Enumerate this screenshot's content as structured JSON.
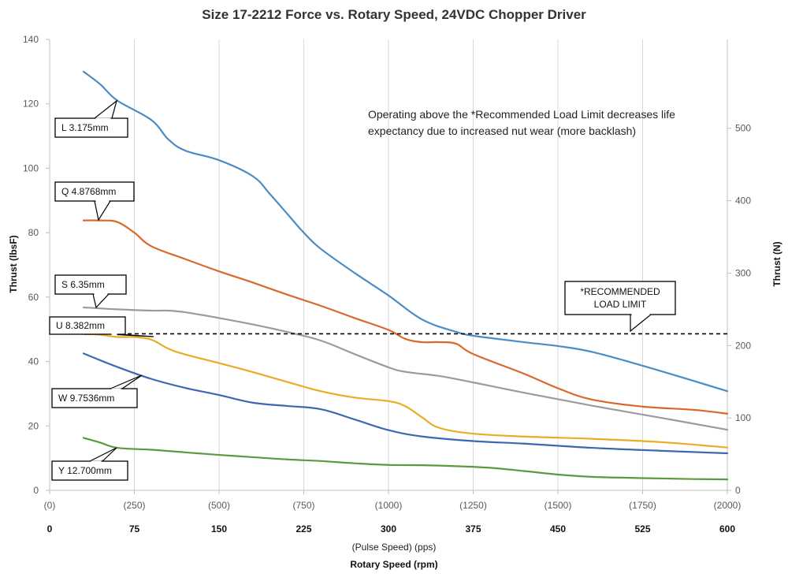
{
  "chart_data": {
    "type": "line",
    "title": "Size 17-2212 Force vs. Rotary Speed, 24VDC Chopper Driver",
    "ylabel": "Thrust (lbsF)",
    "ylabel_right": "Thrust (N)",
    "xlabel": "Rotary Speed (rpm)",
    "xlabel_secondary": "(Pulse Speed) (pps)",
    "x_range": [
      0,
      600
    ],
    "ylim": [
      0,
      140
    ],
    "yticks": [
      0,
      20,
      40,
      60,
      80,
      100,
      120,
      140
    ],
    "ylim_right": [
      0,
      622.75
    ],
    "yticks_right": [
      0,
      100,
      200,
      300,
      400,
      500
    ],
    "xticks_rpm": [
      "0",
      "75",
      "150",
      "225",
      "300",
      "375",
      "450",
      "525",
      "600"
    ],
    "xticks_pps": [
      "(0)",
      "(250)",
      "(500)",
      "(750)",
      "(1000)",
      "(1250)",
      "(1500)",
      "(1750)",
      "(2000)"
    ],
    "grid": "vertical",
    "note": [
      "Operating above the *Recommended Load Limit decreases life",
      "expectancy due to increased nut wear (more backlash)"
    ],
    "reference_line": {
      "y": 48.6,
      "label": [
        "*RECOMMENDED",
        "LOAD LIMIT"
      ],
      "color": "#000000"
    },
    "series": [
      {
        "name": "L 3.175mm",
        "color": "#4a8dc4",
        "x": [
          30,
          45,
          60,
          90,
          105,
          120,
          150,
          180,
          195,
          210,
          225,
          240,
          270,
          300,
          330,
          360,
          375,
          420,
          450,
          480,
          525,
          570,
          600
        ],
        "y": [
          130,
          126,
          121,
          115,
          109,
          105.5,
          102.5,
          97.5,
          92,
          86,
          80,
          75,
          67.5,
          60.5,
          53,
          49.2,
          48,
          46,
          44.8,
          43,
          38.7,
          34,
          30.8
        ]
      },
      {
        "name": "Q 4.8768mm",
        "color": "#d9692a",
        "x": [
          30,
          45,
          60,
          75,
          90,
          120,
          150,
          180,
          210,
          240,
          270,
          300,
          315,
          330,
          345,
          360,
          375,
          420,
          450,
          480,
          525,
          570,
          600
        ],
        "y": [
          83.8,
          83.8,
          83.3,
          80,
          75.8,
          71.8,
          68,
          64.5,
          60.8,
          57.3,
          53.5,
          49.8,
          47,
          46,
          46,
          45.5,
          42.3,
          36.2,
          31.7,
          28.2,
          26,
          25,
          23.8
        ]
      },
      {
        "name": "S 6.35mm",
        "color": "#9b9b9b",
        "x": [
          30,
          60,
          90,
          105,
          120,
          150,
          180,
          210,
          240,
          270,
          300,
          315,
          345,
          375,
          420,
          480,
          540,
          600
        ],
        "y": [
          56.8,
          56.2,
          55.8,
          55.8,
          55.3,
          53.5,
          51.5,
          49.2,
          46.5,
          42.3,
          38.2,
          36.8,
          35.5,
          33.5,
          30.3,
          26.3,
          22.6,
          18.8
        ]
      },
      {
        "name": "U 8.382mm",
        "color": "#e8ad24",
        "x": [
          30,
          45,
          60,
          75,
          90,
          105,
          120,
          150,
          180,
          210,
          240,
          270,
          300,
          315,
          330,
          345,
          375,
          420,
          480,
          540,
          600
        ],
        "y": [
          48.5,
          48.3,
          47.6,
          47.6,
          46.8,
          44,
          42.2,
          39.5,
          36.7,
          33.7,
          30.8,
          28.8,
          27.7,
          26.1,
          22.6,
          19.4,
          17.6,
          16.7,
          16,
          15,
          13.3
        ]
      },
      {
        "name": "W 9.7536mm",
        "color": "#3e67b1",
        "x": [
          30,
          60,
          90,
          120,
          150,
          180,
          210,
          240,
          270,
          300,
          330,
          375,
          420,
          480,
          540,
          600
        ],
        "y": [
          42.5,
          38.3,
          34.6,
          31.8,
          29.6,
          27.2,
          26.2,
          25.2,
          22,
          18.7,
          16.7,
          15.3,
          14.5,
          13.2,
          12.3,
          11.5
        ]
      },
      {
        "name": "Y 12.700mm",
        "color": "#5b9b3d",
        "x": [
          30,
          45,
          60,
          90,
          120,
          150,
          180,
          210,
          240,
          270,
          300,
          330,
          360,
          390,
          420,
          450,
          480,
          525,
          570,
          600
        ],
        "y": [
          16.3,
          14.8,
          13.2,
          12.6,
          11.8,
          11,
          10.3,
          9.6,
          9.1,
          8.4,
          7.9,
          7.8,
          7.5,
          7,
          6,
          4.9,
          4.2,
          3.8,
          3.5,
          3.4
        ]
      }
    ]
  },
  "callouts": [
    {
      "label": "L 3.175mm",
      "series": 0
    },
    {
      "label": "Q 4.8768mm",
      "series": 1
    },
    {
      "label": "S 6.35mm",
      "series": 2
    },
    {
      "label": "U 8.382mm",
      "series": 3
    },
    {
      "label": "W 9.7536mm",
      "series": 4
    },
    {
      "label": "Y 12.700mm",
      "series": 5
    }
  ]
}
